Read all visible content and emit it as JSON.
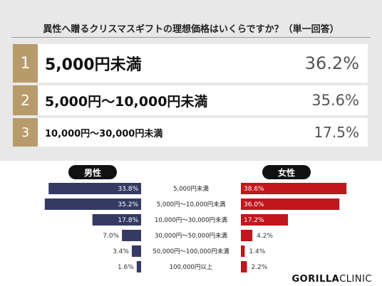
{
  "title": "異性へ贈るクリスマスギフトの理想価格はいくらですか？（単一回答）",
  "ranking": [
    {
      "rank": "1",
      "label": "5,000円未満",
      "pct": "36.2%"
    },
    {
      "rank": "2",
      "label": "5,000円〜10,000円未満",
      "pct": "35.6%"
    },
    {
      "rank": "3",
      "label": "10,000円〜30,000円未満",
      "pct": "17.5%"
    }
  ],
  "legend": {
    "male": "男性",
    "female": "女性"
  },
  "colors": {
    "male": "#353a63",
    "female": "#c0161c",
    "rank_badge": "#b89b6a"
  },
  "brand": {
    "bold": "GORILLA",
    "light": "CLINIC"
  },
  "chart_data": {
    "type": "bar",
    "orientation": "horizontal-butterfly",
    "categories": [
      "5,000円未満",
      "5,000円〜10,000円未満",
      "10,000円〜30,000円未満",
      "30,000円〜50,000円未満",
      "50,000円〜100,000円未満",
      "100,000円以上"
    ],
    "series": [
      {
        "name": "男性",
        "values": [
          33.8,
          35.2,
          17.8,
          7.0,
          3.4,
          1.6
        ],
        "labels": [
          "33.8%",
          "35.2%",
          "17.8%",
          "7.0%",
          "3.4%",
          "1.6%"
        ]
      },
      {
        "name": "女性",
        "values": [
          38.6,
          36.0,
          17.2,
          4.2,
          1.4,
          2.2
        ],
        "labels": [
          "38.6%",
          "36.0%",
          "17.2%",
          "4.2%",
          "1.4%",
          "2.2%"
        ]
      }
    ],
    "grid": false
  }
}
